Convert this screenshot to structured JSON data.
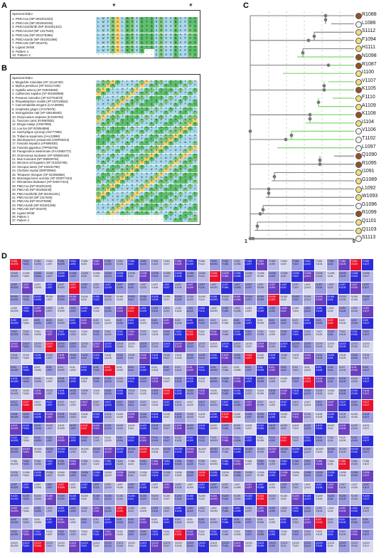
{
  "panels": {
    "a": "A",
    "b": "B",
    "c": "C",
    "d": "D"
  },
  "panelA": {
    "header": "Species/Abbrv",
    "stars": [
      "*",
      "*"
    ],
    "rows": [
      {
        "label": "1. PMCA1a (NP 001001323)",
        "seq": "LRRGQILWFRGLNRIQTQMKVVNAFSS"
      },
      {
        "label": "2. PMCA1b (NP 001053449)",
        "seq": "LRRGQILWFRGLNRIQTQMKVVNAFSS"
      },
      {
        "label": "3. PMCA2a/2b/3b (NP 001001331)",
        "seq": "LRRGQILWFRGLNRIQTQIRVVKAFRS"
      },
      {
        "label": "4. PMCA2c/2d (NP 1317540)",
        "seq": "LRRGQILWFRGLNRIQTQIRVVNAFRS"
      },
      {
        "label": "5. PMCA3a (NP 001375386)",
        "seq": "LRRGQILWFRGLNRIQTQIRVVNAFRS"
      },
      {
        "label": "6. PMCA4a/4b (NP 001001396)",
        "seq": "LRRGQILWFRGLNRIQTQIRVVNAFRS"
      },
      {
        "label": "7. PMCA4b (NP 001676)",
        "seq": "LRRGQILWFRGLNRIQTQIKVVNAFSS"
      },
      {
        "label": "8. Ligand 2KNE",
        "seq": "LRRGQILWFRGLNRIQTQIKVVNAFSS"
      },
      {
        "label": "9. Pattern 1",
        "seq": "LRRGQILWFRGLNRIQ--IKVVNAFSS"
      },
      {
        "label": "10. Pattern 2",
        "seq": "-----------------IRVVNAFRS"
      }
    ]
  },
  "panelB": {
    "header": "Species/Abbrv",
    "rows": [
      "1. Megachile rotundata (XP 12144760)",
      "2. Mytilus persiticus (XP 022117106)",
      "3. Hyalella azteca (XP 018018693)",
      "4. Callinectes sapidus (XP 061080998)",
      "5. Penaeus monodon (XP 037764679)",
      "6. Rhopalosiphum maidis (XP 037218564)",
      "7. Caenorhabditis elegans (CAA30608)",
      "8. Anopheles ginger (AYS78378)",
      "9. Strongyloides ratti (XP 028150593)",
      "10. Dictyocaulus viviparus (KJH45769)",
      "11. Toxocara canis (KHN83535)",
      "12. Brugia malayi (VIO87896)",
      "13. Loa loa (XP 003064896)",
      "14. Sinchytrigos cyminoji (AKF77960)",
      "15. Tridacna squamosa (AAL22998)",
      "16. Mizuhopecten yessoensis (OWF55310)",
      "17. Fasciola hepatica (AFM94630)",
      "18. Fasciola gigantica (TPP65705)",
      "19. Paragonimus westermani (KAA3682772)",
      "20. Gramnomys surdaster (XP 028820426)",
      "21. Mus musculus (NP 006629784)",
      "22. Microtus ochrogaster (XP 013202785)",
      "23. Xenopus laevis (XP 018104796)",
      "24. Chelonia mydas (EMP30964)",
      "25. Tetrapene triunguis (XP 024066565)",
      "26. Monosiga breve unicolor (XP 030077433)",
      "27. Rhinatrema bivittatum (XP 029477424)",
      "28. PMCA1a (NP 001001323)",
      "29. PMCA1b (NP 001053449)",
      "30. PMCA2a/2b/3b (NP 001001331)",
      "31. PMCA2c/2d (NP 1317540)",
      "32. PMCA3a (NP 001375386)",
      "33. PMCA4a/4b (NP 001001396)",
      "34. PMCA4b (NP 001676)",
      "35. Ligand 2KNE",
      "36. Pattern 1",
      "37. Pattern 2"
    ]
  },
  "panelC": {
    "scale_left": "1",
    "scale_right": "0",
    "leaves": [
      {
        "label": "R1088",
        "color": "#9a4f1e"
      },
      {
        "label": "L1086",
        "color": "#f4f4f4"
      },
      {
        "label": "S1112",
        "color": "#f0e07a"
      },
      {
        "label": "F1094",
        "color": "#f0e07a"
      },
      {
        "label": "H1111",
        "color": "#f0e07a"
      },
      {
        "label": "N1098",
        "color": "#9a4f1e"
      },
      {
        "label": "R1087",
        "color": "#9a4f1e"
      },
      {
        "label": "I1100",
        "color": "#f0e07a"
      },
      {
        "label": "V1107",
        "color": "#f0e07a"
      },
      {
        "label": "K1105",
        "color": "#9a4f1e"
      },
      {
        "label": "F1110",
        "color": "#f0e07a"
      },
      {
        "label": "A1109",
        "color": "#f0e07a"
      },
      {
        "label": "K1108",
        "color": "#9a4f1e"
      },
      {
        "label": "I1104",
        "color": "#f0e07a"
      },
      {
        "label": "V1106",
        "color": "#f4f4f4"
      },
      {
        "label": "T1102",
        "color": "#f4f4f4"
      },
      {
        "label": "L1097",
        "color": "#f4f4f4"
      },
      {
        "label": "Q1090",
        "color": "#9a4f1e"
      },
      {
        "label": "R1095",
        "color": "#9a4f1e"
      },
      {
        "label": "I1091",
        "color": "#f0e07a"
      },
      {
        "label": "G1089",
        "color": "#f0e07a"
      },
      {
        "label": "L1092",
        "color": "#f0e07a"
      },
      {
        "label": "W1093",
        "color": "#f0e07a"
      },
      {
        "label": "G1096",
        "color": "#f4f4f4"
      },
      {
        "label": "R1099",
        "color": "#9a4f1e"
      },
      {
        "label": "Q1101",
        "color": "#f0e07a"
      },
      {
        "label": "Q1103",
        "color": "#f0e07a"
      },
      {
        "label": "S1113",
        "color": "#f4f4f4"
      }
    ]
  },
  "panelD": {
    "residues": [
      "W1093",
      "F1084",
      "G1096",
      "L1097",
      "R1099",
      "L1092",
      "I1100",
      "T1102",
      "Q1103",
      "V1106",
      "I1104",
      "K1105",
      "V1106",
      "V1107",
      "K1108",
      "A1109",
      "F1110"
    ]
  }
}
